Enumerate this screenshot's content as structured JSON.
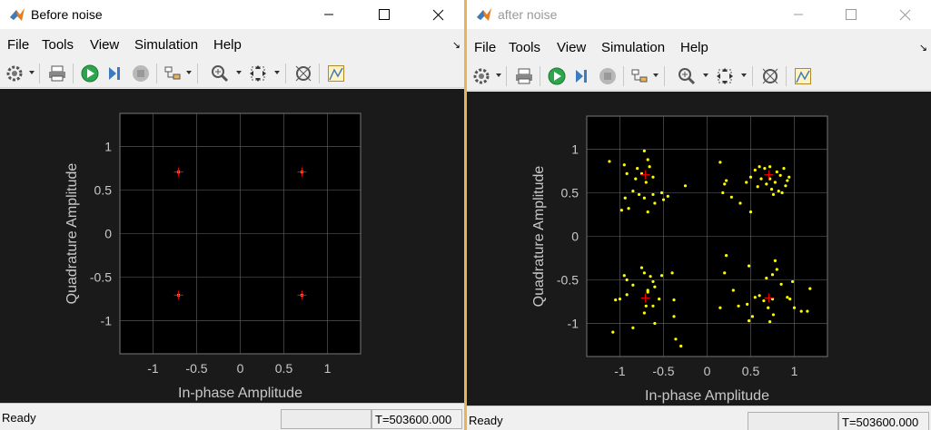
{
  "windows": [
    {
      "title": "Before noise",
      "active": true,
      "menu": [
        "File",
        "Tools",
        "View",
        "Simulation",
        "Help"
      ],
      "status": "Ready",
      "time": "T=503600.000",
      "chart_data": {
        "type": "scatter",
        "xlabel": "In-phase Amplitude",
        "ylabel": "Quadrature Amplitude",
        "xlim": [
          -1.38,
          1.38
        ],
        "ylim": [
          -1.38,
          1.38
        ],
        "xticks": [
          "-1",
          "-0.5",
          "0",
          "0.5",
          "1"
        ],
        "yticks": [
          "1",
          "0.5",
          "0",
          "-0.5",
          "-1"
        ],
        "grid": true,
        "reference": [
          [
            -0.707,
            0.707
          ],
          [
            0.707,
            0.707
          ],
          [
            -0.707,
            -0.707
          ],
          [
            0.707,
            -0.707
          ]
        ],
        "points": [
          [
            -0.707,
            0.707
          ],
          [
            0.707,
            0.707
          ],
          [
            -0.707,
            -0.707
          ],
          [
            0.707,
            -0.707
          ]
        ],
        "colors": {
          "points": "#ffff00",
          "reference": "#ff0000",
          "grid": "#666666",
          "axes_bg": "#000000"
        }
      }
    },
    {
      "title": "after noise",
      "active": false,
      "menu": [
        "File",
        "Tools",
        "View",
        "Simulation",
        "Help"
      ],
      "status": "Ready",
      "time": "T=503600.000",
      "chart_data": {
        "type": "scatter",
        "xlabel": "In-phase Amplitude",
        "ylabel": "Quadrature Amplitude",
        "xlim": [
          -1.38,
          1.38
        ],
        "ylim": [
          -1.38,
          1.38
        ],
        "xticks": [
          "-1",
          "-0.5",
          "0",
          "0.5",
          "1"
        ],
        "yticks": [
          "1",
          "0.5",
          "0",
          "-0.5",
          "-1"
        ],
        "grid": true,
        "reference": [
          [
            -0.707,
            0.707
          ],
          [
            0.707,
            0.707
          ],
          [
            -0.707,
            -0.707
          ],
          [
            0.707,
            -0.707
          ]
        ],
        "points": [
          [
            -1.12,
            0.86
          ],
          [
            -0.95,
            0.82
          ],
          [
            -0.72,
            0.98
          ],
          [
            -0.68,
            0.88
          ],
          [
            -0.66,
            0.8
          ],
          [
            -0.8,
            0.78
          ],
          [
            -0.75,
            0.72
          ],
          [
            -0.92,
            0.72
          ],
          [
            -0.82,
            0.66
          ],
          [
            -0.7,
            0.62
          ],
          [
            -0.62,
            0.68
          ],
          [
            -0.85,
            0.52
          ],
          [
            -0.78,
            0.48
          ],
          [
            -0.72,
            0.44
          ],
          [
            -0.62,
            0.48
          ],
          [
            -0.94,
            0.44
          ],
          [
            -0.52,
            0.5
          ],
          [
            -0.45,
            0.46
          ],
          [
            -0.5,
            0.42
          ],
          [
            -0.98,
            0.3
          ],
          [
            -0.9,
            0.32
          ],
          [
            -0.68,
            0.28
          ],
          [
            -0.25,
            0.58
          ],
          [
            -0.6,
            0.38
          ],
          [
            0.15,
            0.85
          ],
          [
            0.22,
            0.64
          ],
          [
            0.2,
            0.6
          ],
          [
            0.18,
            0.5
          ],
          [
            0.28,
            0.45
          ],
          [
            0.38,
            0.38
          ],
          [
            0.5,
            0.28
          ],
          [
            0.45,
            0.62
          ],
          [
            0.5,
            0.68
          ],
          [
            0.55,
            0.76
          ],
          [
            0.6,
            0.8
          ],
          [
            0.66,
            0.78
          ],
          [
            0.72,
            0.8
          ],
          [
            0.8,
            0.74
          ],
          [
            0.62,
            0.66
          ],
          [
            0.68,
            0.6
          ],
          [
            0.72,
            0.66
          ],
          [
            0.78,
            0.62
          ],
          [
            0.84,
            0.7
          ],
          [
            0.88,
            0.78
          ],
          [
            0.92,
            0.64
          ],
          [
            0.9,
            0.58
          ],
          [
            0.82,
            0.52
          ],
          [
            0.74,
            0.54
          ],
          [
            0.76,
            0.48
          ],
          [
            0.86,
            0.5
          ],
          [
            0.94,
            0.68
          ],
          [
            0.58,
            0.57
          ],
          [
            -1.05,
            -0.73
          ],
          [
            -1.0,
            -0.72
          ],
          [
            -1.08,
            -1.1
          ],
          [
            -0.95,
            -0.45
          ],
          [
            -0.92,
            -0.5
          ],
          [
            -0.85,
            -0.56
          ],
          [
            -0.75,
            -0.36
          ],
          [
            -0.72,
            -0.42
          ],
          [
            -0.65,
            -0.46
          ],
          [
            -0.62,
            -0.52
          ],
          [
            -0.6,
            -0.58
          ],
          [
            -0.68,
            -0.62
          ],
          [
            -0.7,
            -0.8
          ],
          [
            -0.62,
            -0.8
          ],
          [
            -0.72,
            -0.88
          ],
          [
            -0.55,
            -0.72
          ],
          [
            -0.52,
            -0.45
          ],
          [
            -0.4,
            -0.42
          ],
          [
            -0.38,
            -0.73
          ],
          [
            -0.38,
            -0.92
          ],
          [
            -0.6,
            -1.0
          ],
          [
            -0.36,
            -1.18
          ],
          [
            -0.3,
            -1.26
          ],
          [
            -0.68,
            -0.64
          ],
          [
            -0.92,
            -0.67
          ],
          [
            -0.85,
            -1.05
          ],
          [
            0.15,
            -0.82
          ],
          [
            0.2,
            -0.42
          ],
          [
            0.22,
            -0.22
          ],
          [
            0.3,
            -0.62
          ],
          [
            0.36,
            -0.8
          ],
          [
            0.46,
            -0.78
          ],
          [
            0.48,
            -0.97
          ],
          [
            0.52,
            -0.92
          ],
          [
            0.48,
            -0.34
          ],
          [
            0.55,
            -0.7
          ],
          [
            0.6,
            -0.68
          ],
          [
            0.65,
            -0.74
          ],
          [
            0.7,
            -0.82
          ],
          [
            0.75,
            -0.72
          ],
          [
            0.72,
            -0.98
          ],
          [
            0.76,
            -0.9
          ],
          [
            0.68,
            -0.48
          ],
          [
            0.75,
            -0.44
          ],
          [
            0.8,
            -0.38
          ],
          [
            0.78,
            -0.28
          ],
          [
            0.85,
            -0.55
          ],
          [
            0.92,
            -0.7
          ],
          [
            0.98,
            -0.52
          ],
          [
            1.0,
            -0.82
          ],
          [
            1.08,
            -0.86
          ],
          [
            1.15,
            -0.86
          ],
          [
            1.18,
            -0.6
          ],
          [
            0.95,
            -0.72
          ]
        ],
        "colors": {
          "points": "#ffff00",
          "reference": "#ff0000",
          "grid": "#666666",
          "axes_bg": "#000000"
        }
      }
    }
  ]
}
